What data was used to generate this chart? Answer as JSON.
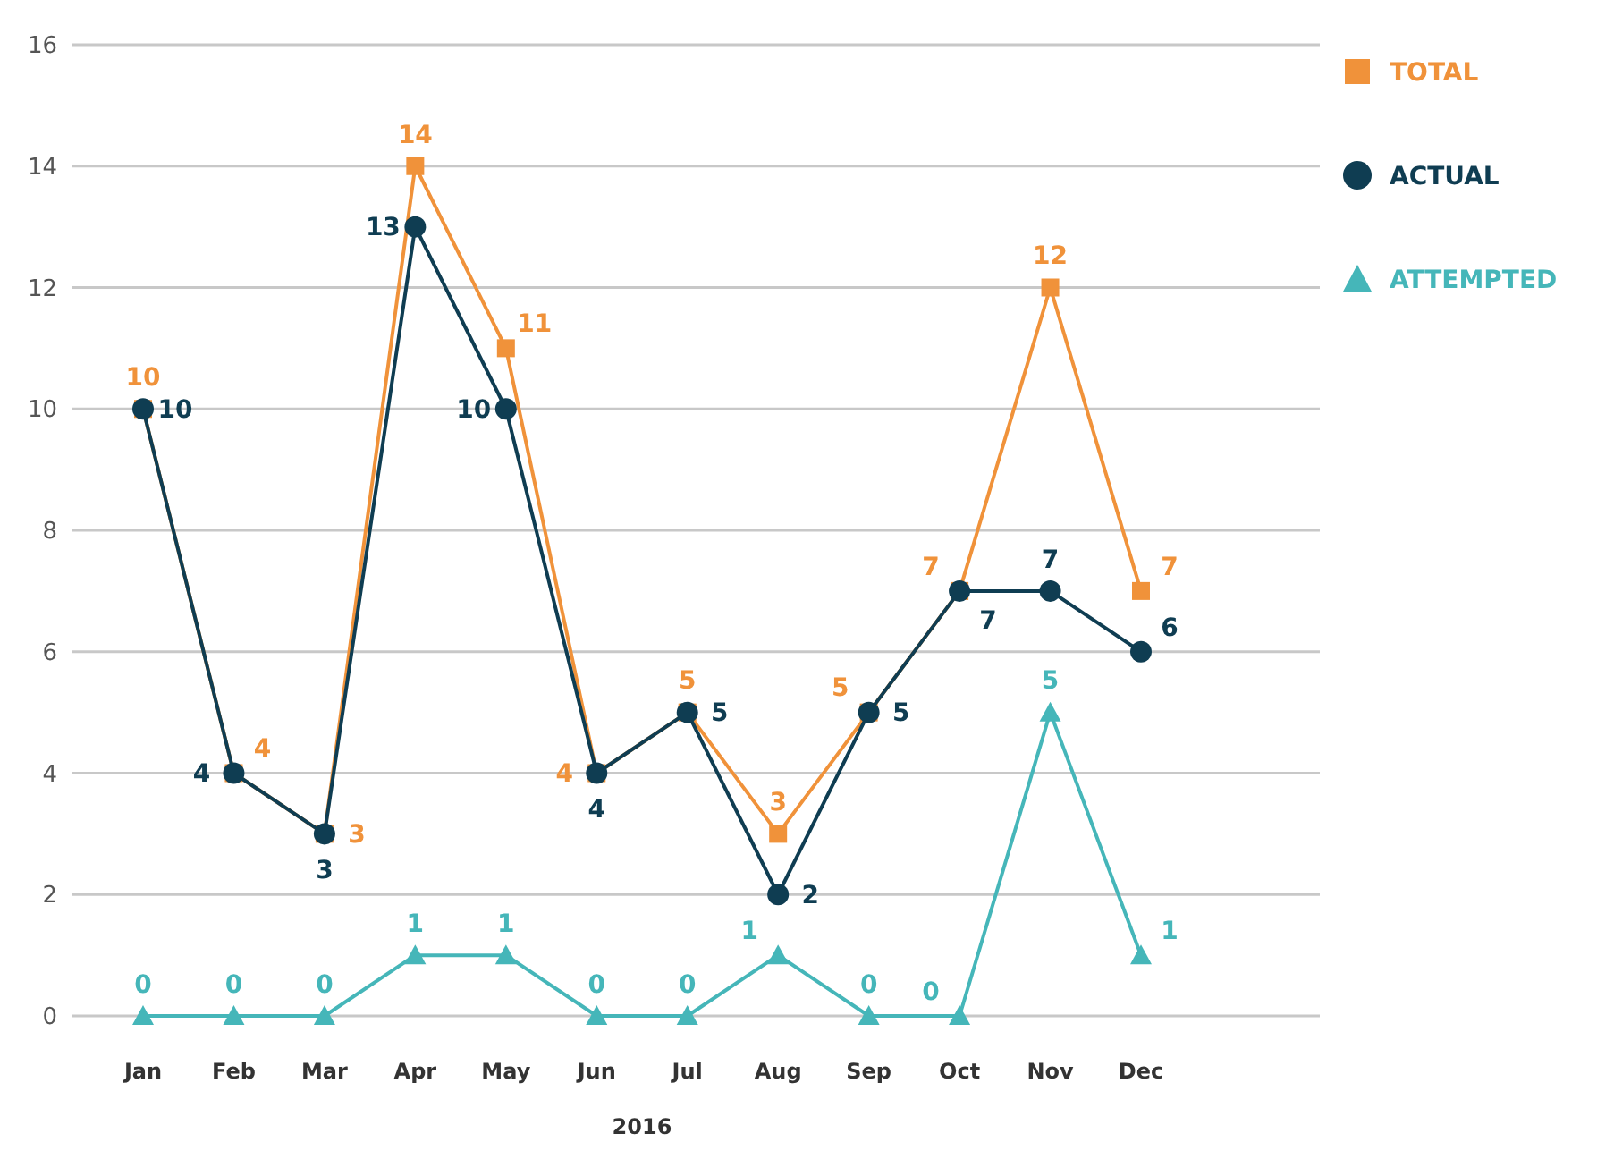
{
  "chart_data": {
    "type": "line",
    "xlabel": "2016",
    "categories": [
      "Jan",
      "Feb",
      "Mar",
      "Apr",
      "May",
      "Jun",
      "Jul",
      "Aug",
      "Sep",
      "Oct",
      "Nov",
      "Dec"
    ],
    "series": [
      {
        "name": "TOTAL",
        "color": "#f0923a",
        "marker": "square",
        "values": [
          10,
          4,
          3,
          14,
          11,
          4,
          5,
          3,
          5,
          7,
          12,
          7
        ]
      },
      {
        "name": "ACTUAL",
        "color": "#0f3d52",
        "marker": "circle",
        "values": [
          10,
          4,
          3,
          13,
          10,
          4,
          5,
          2,
          5,
          7,
          7,
          6
        ]
      },
      {
        "name": "ATTEMPTED",
        "color": "#45b6b9",
        "marker": "triangle",
        "values": [
          0,
          0,
          0,
          1,
          1,
          0,
          0,
          1,
          0,
          0,
          5,
          1
        ]
      }
    ],
    "ylim": [
      0,
      16
    ],
    "yticks": [
      0,
      2,
      4,
      6,
      8,
      10,
      12,
      14,
      16
    ],
    "grid": "y",
    "legend": "top right",
    "data_labels": true,
    "line_style": "solid"
  }
}
